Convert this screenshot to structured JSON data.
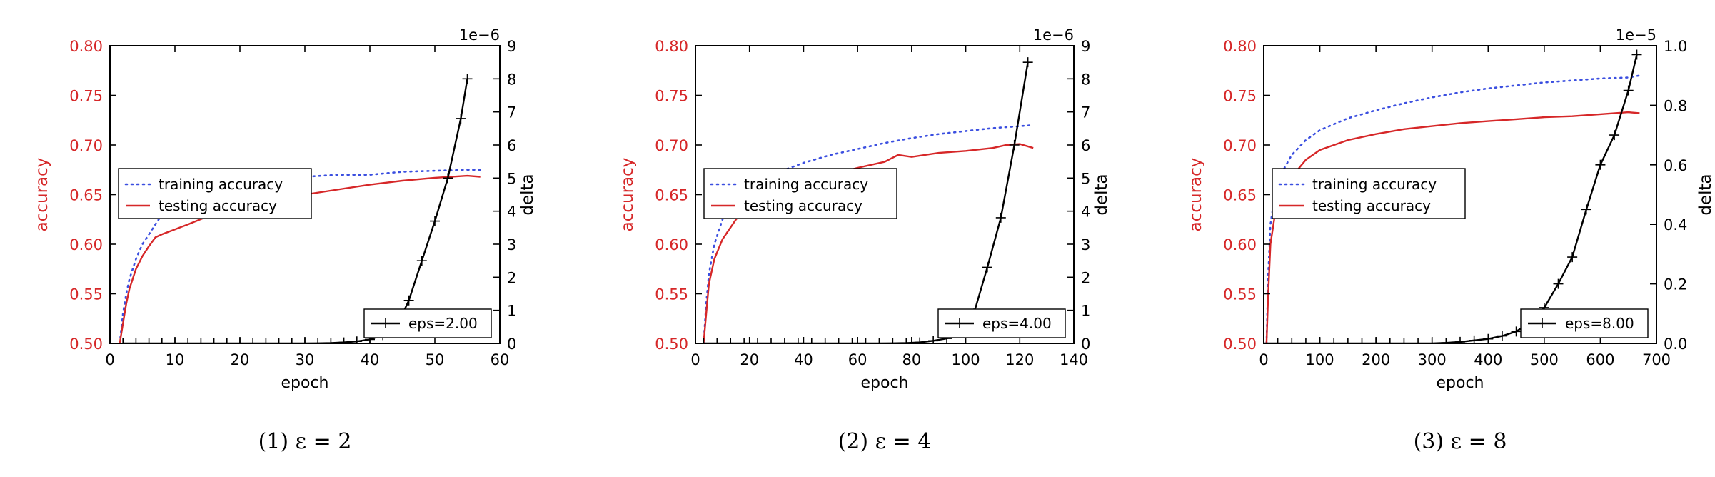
{
  "chart_data": [
    {
      "type": "line",
      "caption": "(1) ε = 2",
      "xlabel": "epoch",
      "ylabel": "accuracy",
      "y2label": "delta",
      "y2_offset_text": "1e−6",
      "xlim": [
        0,
        60
      ],
      "xticks": [
        "0",
        "10",
        "20",
        "30",
        "40",
        "50",
        "60"
      ],
      "ylim": [
        0.5,
        0.8
      ],
      "yticks": [
        "0.50",
        "0.55",
        "0.60",
        "0.65",
        "0.70",
        "0.75",
        "0.80"
      ],
      "y2lim": [
        0,
        9
      ],
      "y2ticks": [
        "0",
        "1",
        "2",
        "3",
        "4",
        "5",
        "6",
        "7",
        "8",
        "9"
      ],
      "legend_accuracy": {
        "placement": "center-left",
        "training_label": "training accuracy",
        "testing_label": "testing accuracy"
      },
      "legend_delta": {
        "placement": "lower-right",
        "label": "eps=2.00"
      },
      "series": [
        {
          "name": "training accuracy",
          "style": "dotted",
          "color": "#3b4fe0",
          "axis": "left",
          "x": [
            1.5,
            2,
            2.5,
            3,
            4,
            5,
            6,
            7,
            8,
            10,
            12,
            15,
            20,
            25,
            30,
            35,
            40,
            45,
            50,
            55,
            57
          ],
          "y": [
            0.5,
            0.53,
            0.55,
            0.565,
            0.585,
            0.6,
            0.61,
            0.62,
            0.63,
            0.64,
            0.648,
            0.655,
            0.66,
            0.665,
            0.668,
            0.67,
            0.67,
            0.673,
            0.674,
            0.675,
            0.675
          ]
        },
        {
          "name": "testing accuracy",
          "style": "solid",
          "color": "#d62728",
          "axis": "left",
          "x": [
            1.5,
            2,
            2.5,
            3,
            4,
            5,
            6,
            7,
            8,
            10,
            12,
            15,
            20,
            25,
            30,
            35,
            40,
            45,
            50,
            55,
            57
          ],
          "y": [
            0.5,
            0.52,
            0.54,
            0.555,
            0.575,
            0.588,
            0.598,
            0.607,
            0.61,
            0.615,
            0.62,
            0.628,
            0.638,
            0.645,
            0.65,
            0.655,
            0.66,
            0.664,
            0.667,
            0.669,
            0.668
          ]
        },
        {
          "name": "eps=2.00",
          "style": "solid-plus",
          "color": "#000000",
          "axis": "right",
          "x": [
            2,
            4,
            6,
            8,
            10,
            12,
            14,
            16,
            18,
            20,
            22,
            24,
            26,
            28,
            30,
            32,
            34,
            36,
            38,
            40,
            42,
            44,
            46,
            48,
            50,
            52,
            54,
            55
          ],
          "y": [
            0,
            0,
            0,
            0,
            0,
            0,
            0,
            0,
            0,
            0,
            0,
            0,
            0,
            0,
            0,
            0.005,
            0.01,
            0.03,
            0.06,
            0.12,
            0.25,
            0.45,
            1.3,
            2.5,
            3.7,
            5.0,
            6.8,
            8.0
          ]
        }
      ]
    },
    {
      "type": "line",
      "caption": "(2) ε = 4",
      "xlabel": "epoch",
      "ylabel": "accuracy",
      "y2label": "delta",
      "y2_offset_text": "1e−6",
      "xlim": [
        0,
        140
      ],
      "xticks": [
        "0",
        "20",
        "40",
        "60",
        "80",
        "100",
        "120",
        "140"
      ],
      "ylim": [
        0.5,
        0.8
      ],
      "yticks": [
        "0.50",
        "0.55",
        "0.60",
        "0.65",
        "0.70",
        "0.75",
        "0.80"
      ],
      "y2lim": [
        0,
        9
      ],
      "y2ticks": [
        "0",
        "1",
        "2",
        "3",
        "4",
        "5",
        "6",
        "7",
        "8",
        "9"
      ],
      "legend_accuracy": {
        "placement": "center-left",
        "training_label": "training accuracy",
        "testing_label": "testing accuracy"
      },
      "legend_delta": {
        "placement": "lower-right",
        "label": "eps=4.00"
      },
      "series": [
        {
          "name": "training accuracy",
          "style": "dotted",
          "color": "#3b4fe0",
          "axis": "left",
          "x": [
            3,
            4,
            5,
            7,
            10,
            15,
            20,
            30,
            40,
            50,
            60,
            70,
            80,
            90,
            100,
            110,
            120,
            125
          ],
          "y": [
            0.5,
            0.54,
            0.57,
            0.6,
            0.625,
            0.648,
            0.66,
            0.672,
            0.682,
            0.69,
            0.696,
            0.702,
            0.707,
            0.711,
            0.714,
            0.717,
            0.719,
            0.72
          ]
        },
        {
          "name": "testing accuracy",
          "style": "solid",
          "color": "#d62728",
          "axis": "left",
          "x": [
            3,
            4,
            5,
            7,
            10,
            15,
            20,
            30,
            40,
            50,
            60,
            70,
            75,
            80,
            90,
            100,
            110,
            115,
            120,
            125
          ],
          "y": [
            0.5,
            0.53,
            0.56,
            0.585,
            0.605,
            0.625,
            0.638,
            0.652,
            0.662,
            0.67,
            0.677,
            0.683,
            0.69,
            0.688,
            0.692,
            0.694,
            0.697,
            0.7,
            0.701,
            0.697
          ]
        },
        {
          "name": "eps=4.00",
          "style": "solid-plus",
          "color": "#000000",
          "axis": "right",
          "x": [
            3,
            8,
            13,
            18,
            23,
            28,
            33,
            38,
            43,
            48,
            53,
            58,
            63,
            68,
            73,
            78,
            83,
            88,
            93,
            98,
            103,
            108,
            113,
            118,
            123
          ],
          "y": [
            0,
            0,
            0,
            0,
            0,
            0,
            0,
            0,
            0,
            0,
            0,
            0,
            0,
            0,
            0.005,
            0.01,
            0.03,
            0.08,
            0.15,
            0.35,
            0.9,
            2.3,
            3.8,
            6.0,
            8.5
          ]
        }
      ]
    },
    {
      "type": "line",
      "caption": "(3) ε = 8",
      "xlabel": "epoch",
      "ylabel": "accuracy",
      "y2label": "delta",
      "y2_offset_text": "1e−5",
      "xlim": [
        0,
        700
      ],
      "xticks": [
        "0",
        "100",
        "200",
        "300",
        "400",
        "500",
        "600",
        "700"
      ],
      "ylim": [
        0.5,
        0.8
      ],
      "yticks": [
        "0.50",
        "0.55",
        "0.60",
        "0.65",
        "0.70",
        "0.75",
        "0.80"
      ],
      "y2lim": [
        0,
        1.0
      ],
      "y2ticks": [
        "0.0",
        "0.2",
        "0.4",
        "0.6",
        "0.8",
        "1.0"
      ],
      "legend_accuracy": {
        "placement": "center-left",
        "training_label": "training accuracy",
        "testing_label": "testing accuracy"
      },
      "legend_delta": {
        "placement": "lower-right",
        "label": "eps=8.00"
      },
      "series": [
        {
          "name": "training accuracy",
          "style": "dotted",
          "color": "#3b4fe0",
          "axis": "left",
          "x": [
            5,
            8,
            12,
            20,
            30,
            50,
            75,
            100,
            150,
            200,
            250,
            300,
            350,
            400,
            450,
            500,
            550,
            600,
            650,
            670
          ],
          "y": [
            0.5,
            0.57,
            0.62,
            0.65,
            0.67,
            0.69,
            0.705,
            0.715,
            0.727,
            0.735,
            0.742,
            0.748,
            0.753,
            0.757,
            0.76,
            0.763,
            0.765,
            0.767,
            0.768,
            0.77
          ]
        },
        {
          "name": "testing accuracy",
          "style": "solid",
          "color": "#d62728",
          "axis": "left",
          "x": [
            5,
            8,
            12,
            20,
            30,
            50,
            75,
            100,
            150,
            200,
            250,
            300,
            350,
            400,
            450,
            500,
            550,
            600,
            650,
            670
          ],
          "y": [
            0.5,
            0.55,
            0.6,
            0.63,
            0.648,
            0.668,
            0.685,
            0.695,
            0.705,
            0.711,
            0.716,
            0.719,
            0.722,
            0.724,
            0.726,
            0.728,
            0.729,
            0.731,
            0.733,
            0.732
          ]
        },
        {
          "name": "eps=8.00",
          "style": "solid-plus",
          "color": "#000000",
          "axis": "right",
          "x": [
            0,
            25,
            50,
            75,
            100,
            125,
            150,
            175,
            200,
            225,
            250,
            275,
            300,
            325,
            350,
            375,
            400,
            425,
            450,
            475,
            500,
            525,
            550,
            575,
            600,
            625,
            650,
            665
          ],
          "y": [
            0,
            0,
            0,
            0,
            0,
            0,
            0,
            0,
            0,
            0,
            0,
            0,
            0,
            0.002,
            0.005,
            0.01,
            0.015,
            0.025,
            0.04,
            0.07,
            0.12,
            0.2,
            0.29,
            0.45,
            0.6,
            0.7,
            0.85,
            0.97
          ]
        }
      ]
    }
  ]
}
